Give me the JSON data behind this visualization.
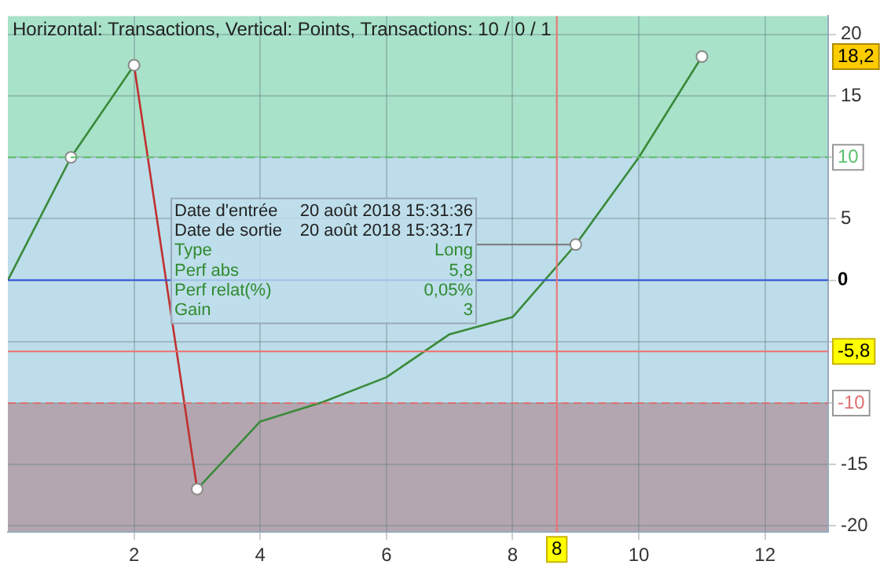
{
  "chart_data": {
    "type": "line",
    "title": "Horizontal: Transactions, Vertical: Points, Transactions: 10 / 0 / 1",
    "series": [
      {
        "color": "#3a8a3a",
        "x": [
          0,
          1,
          2,
          2.5,
          3,
          4,
          5,
          6,
          7,
          8,
          9,
          10,
          11
        ],
        "values": [
          0,
          10,
          17.5,
          null,
          -17,
          -11.5,
          -9.9,
          -7.9,
          -4.4,
          -3,
          2.9,
          10,
          18.2
        ]
      },
      {
        "color": "#c03030",
        "x": [
          2,
          3
        ],
        "values": [
          17.5,
          -17
        ]
      },
      {
        "type": "scatter",
        "color": "#8a8a8a",
        "x": [
          1,
          2,
          3,
          9,
          11
        ],
        "values": [
          10,
          17.5,
          -17,
          2.9,
          18.2
        ]
      }
    ],
    "xlim": [
      0,
      13
    ],
    "ylim": [
      -20.5,
      21.5
    ],
    "xticks": [
      2,
      4,
      6,
      8,
      10,
      12
    ],
    "yticks": [
      -20,
      -15,
      {
        "value": -10,
        "label": null
      },
      {
        "value": -5,
        "label": null
      },
      {
        "value": 0,
        "label": null
      },
      5,
      {
        "value": 10,
        "label": null
      },
      15,
      20
    ],
    "grid": true,
    "legend": false,
    "line_style": "solid",
    "bands": [
      {
        "axis": "y",
        "from": 10,
        "to": 21.5,
        "color": "#a8e2c9"
      },
      {
        "axis": "y",
        "from": -10,
        "to": 10,
        "color": "#bcdde9"
      },
      {
        "axis": "y",
        "from": -20.5,
        "to": -10,
        "color": "#b3a6b0"
      }
    ],
    "ref_lines": [
      {
        "axis": "y",
        "value": 10,
        "label": "10",
        "color": "#5cc06a",
        "line_style": "dashed"
      },
      {
        "axis": "y",
        "value": -10,
        "label": "-10",
        "color": "#e07070",
        "line_style": "dashed"
      },
      {
        "axis": "y",
        "value": 0,
        "label": "0",
        "color": "#3050e0",
        "line_style": "solid"
      },
      {
        "axis": "y",
        "value": -5.8,
        "label": "-5,8",
        "color": "#f07070",
        "line_style": "solid"
      },
      {
        "axis": "x",
        "value": 8.7,
        "color": "#f07070",
        "line_style": "solid"
      }
    ],
    "annotations": [
      "18,2",
      "8",
      "Date d'entrée",
      "20 août 2018 15:31:36",
      "Date de sortie",
      "20 août 2018 15:33:17",
      "Type",
      {
        "text": "Long",
        "x": 9,
        "y": 2.9
      },
      "Perf abs",
      "5,8",
      "Perf relat(%)",
      "0,05%",
      "Gain",
      "3"
    ]
  }
}
